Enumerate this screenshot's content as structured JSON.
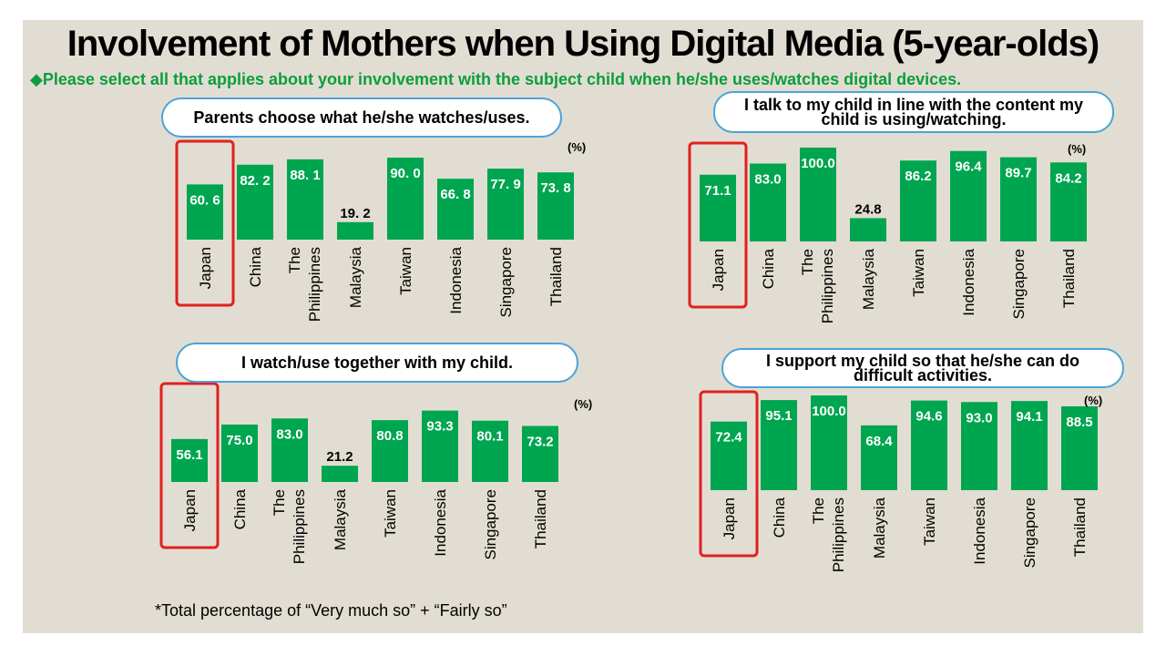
{
  "title": "Involvement of Mothers when Using Digital Media (5-year-olds)",
  "subtitle": "◆Please select all that applies about your involvement with the subject child when he/she uses/watches digital devices.",
  "footnote": "*Total percentage of “Very much so” + “Fairly so”",
  "colors": {
    "bar": "#00a550",
    "highlight": "#e02020",
    "bubble_border": "#4aa3d8",
    "subtitle": "#0b9e3c"
  },
  "chart_data": [
    {
      "type": "bar",
      "title": "Parents choose what he/she watches/uses.",
      "unit": "(%)",
      "categories": [
        "Japan",
        "China",
        "The Philippines",
        "Malaysia",
        "Taiwan",
        "Indonesia",
        "Singapore",
        "Thailand"
      ],
      "values": [
        60.6,
        82.2,
        88.1,
        19.2,
        90.0,
        66.8,
        77.9,
        73.8
      ],
      "value_labels": [
        "60. 6",
        "82. 2",
        "88. 1",
        "19. 2",
        "90. 0",
        "66. 8",
        "77. 9",
        "73. 8"
      ],
      "highlighted": "Japan",
      "ylim": [
        0,
        100
      ]
    },
    {
      "type": "bar",
      "title": "I talk to my child in line with the content my child is using/watching.",
      "unit": "(%)",
      "categories": [
        "Japan",
        "China",
        "The Philippines",
        "Malaysia",
        "Taiwan",
        "Indonesia",
        "Singapore",
        "Thailand"
      ],
      "values": [
        71.1,
        83.0,
        100.0,
        24.8,
        86.2,
        96.4,
        89.7,
        84.2
      ],
      "value_labels": [
        "71.1",
        "83.0",
        "100.0",
        "24.8",
        "86.2",
        "96.4",
        "89.7",
        "84.2"
      ],
      "highlighted": "Japan",
      "ylim": [
        0,
        100
      ]
    },
    {
      "type": "bar",
      "title": "I watch/use together with my child.",
      "unit": "(%)",
      "categories": [
        "Japan",
        "China",
        "The Philippines",
        "Malaysia",
        "Taiwan",
        "Indonesia",
        "Singapore",
        "Thailand"
      ],
      "values": [
        56.1,
        75.0,
        83.0,
        21.2,
        80.8,
        93.3,
        80.1,
        73.2
      ],
      "value_labels": [
        "56.1",
        "75.0",
        "83.0",
        "21.2",
        "80.8",
        "93.3",
        "80.1",
        "73.2"
      ],
      "highlighted": "Japan",
      "ylim": [
        0,
        100
      ]
    },
    {
      "type": "bar",
      "title": "I support my child so that he/she can do difficult activities.",
      "unit": "(%)",
      "categories": [
        "Japan",
        "China",
        "The Philippines",
        "Malaysia",
        "Taiwan",
        "Indonesia",
        "Singapore",
        "Thailand"
      ],
      "values": [
        72.4,
        95.1,
        100.0,
        68.4,
        94.6,
        93.0,
        94.1,
        88.5
      ],
      "value_labels": [
        "72.4",
        "95.1",
        "100.0",
        "68.4",
        "94.6",
        "93.0",
        "94.1",
        "88.5"
      ],
      "highlighted": "Japan",
      "ylim": [
        0,
        100
      ]
    }
  ]
}
